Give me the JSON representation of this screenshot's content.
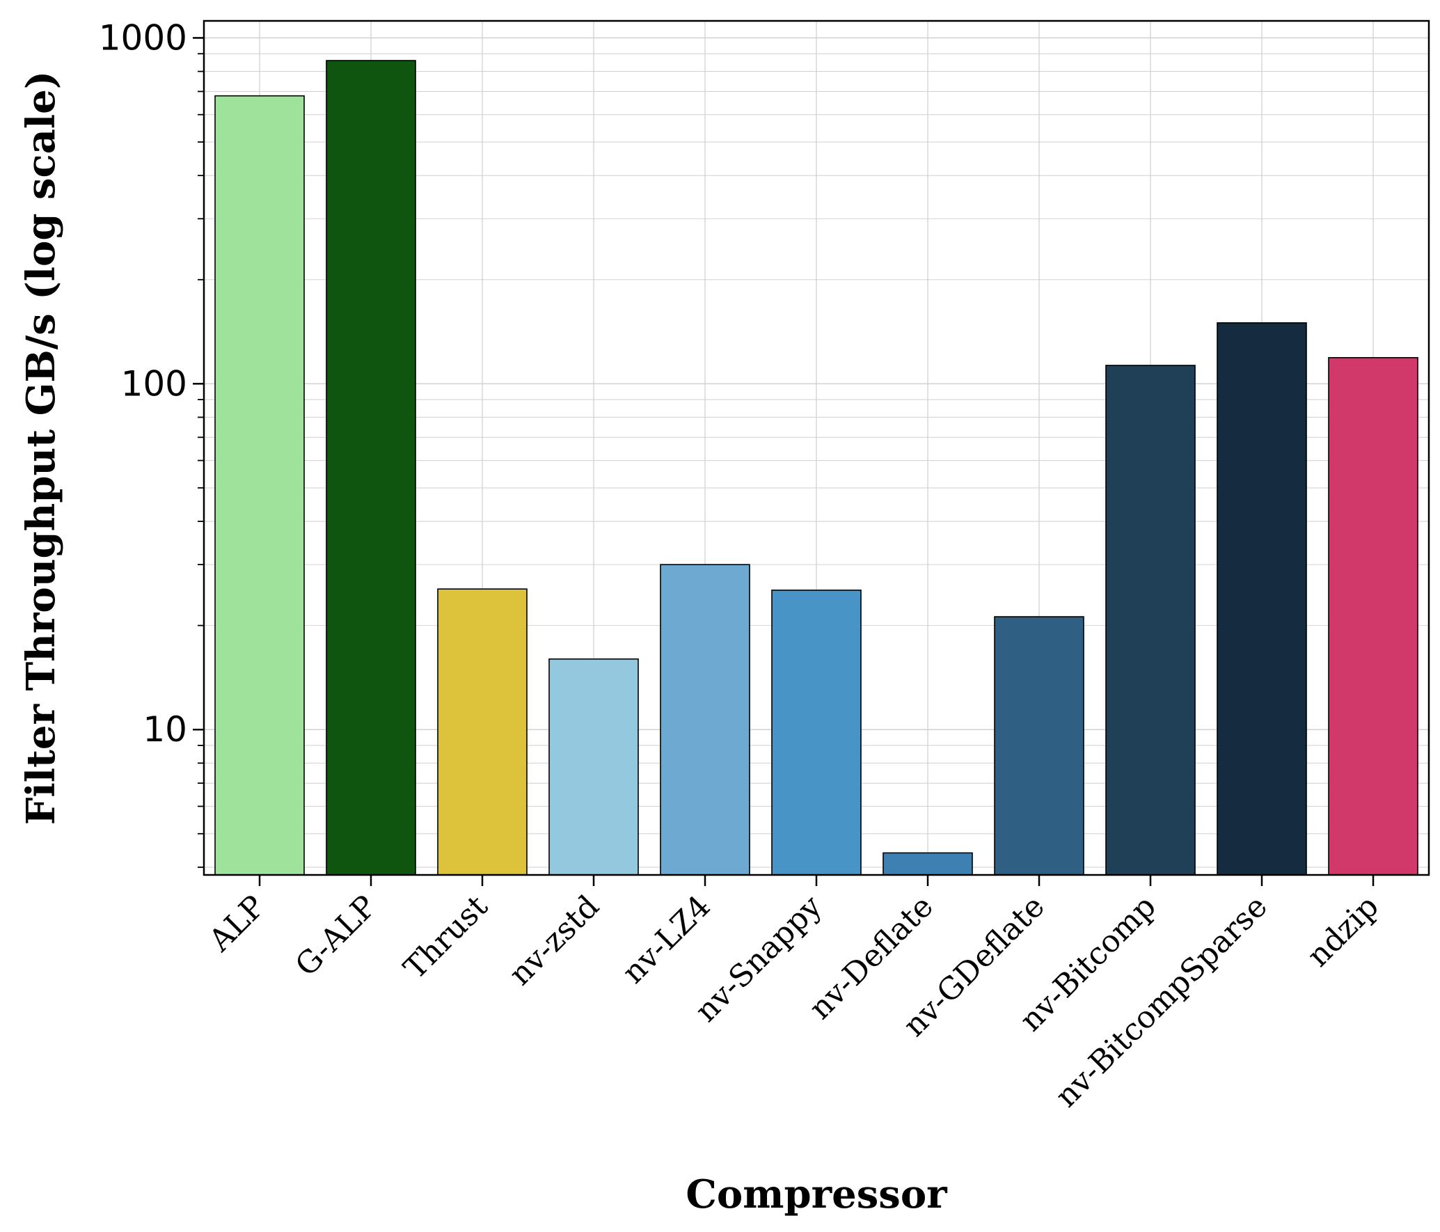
{
  "chart_data": {
    "type": "bar",
    "xlabel": "Compressor",
    "ylabel": "Filter Throughput GB/s (log scale)",
    "yscale": "log",
    "ylim": [
      3.8,
      1120
    ],
    "y_ticks": [
      {
        "value": 10,
        "label": "10"
      },
      {
        "value": 100,
        "label": "100"
      },
      {
        "value": 1000,
        "label": "1000"
      }
    ],
    "grid": true,
    "categories": [
      "ALP",
      "G-ALP",
      "Thrust",
      "nv-zstd",
      "nv-LZ4",
      "nv-Snappy",
      "nv-Deflate",
      "nv-GDeflate",
      "nv-Bitcomp",
      "nv-BitcompSparse",
      "ndzip"
    ],
    "values": [
      680,
      860,
      25.5,
      16,
      30,
      25.3,
      4.4,
      21.2,
      113,
      150,
      119
    ],
    "colors": [
      "#9fe29c",
      "#0f550f",
      "#ddc33b",
      "#94c8de",
      "#6ea9d1",
      "#4894c6",
      "#3f80b3",
      "#2f5f82",
      "#204058",
      "#152c40",
      "#d0396a"
    ]
  }
}
